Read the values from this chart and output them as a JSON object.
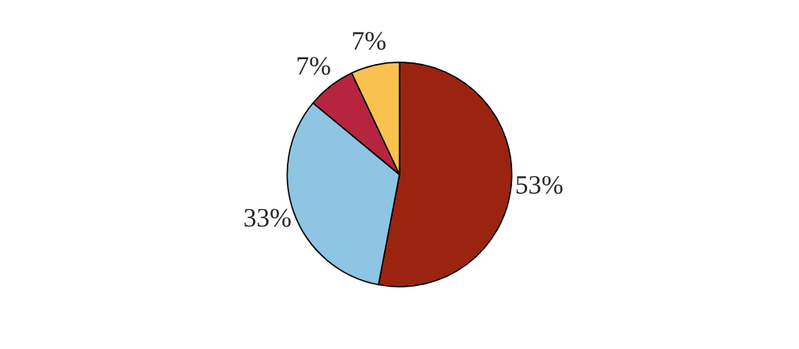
{
  "chart_data": {
    "type": "pie",
    "categories": [
      null,
      null,
      null,
      null
    ],
    "values": [
      53,
      33,
      7,
      7
    ],
    "colors": [
      "#9b2410",
      "#8ec5e3",
      "#b5253f",
      "#f9c24e"
    ],
    "value_labels": [
      "53%",
      "33%",
      "7%",
      "7%"
    ]
  }
}
